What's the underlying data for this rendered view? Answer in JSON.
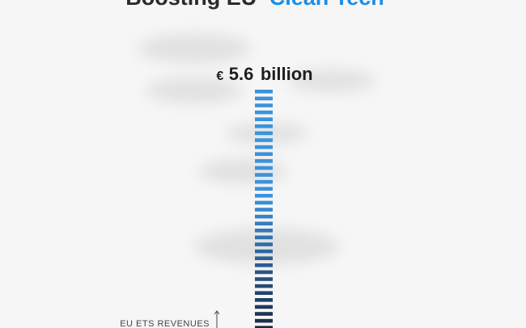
{
  "title": {
    "prefix": "Boosting EU",
    "highlight": "Clean Tech"
  },
  "value_label": {
    "currency": "€",
    "amount": "5.6",
    "unit": "billion"
  },
  "axis_label": "EU ETS REVENUES"
}
